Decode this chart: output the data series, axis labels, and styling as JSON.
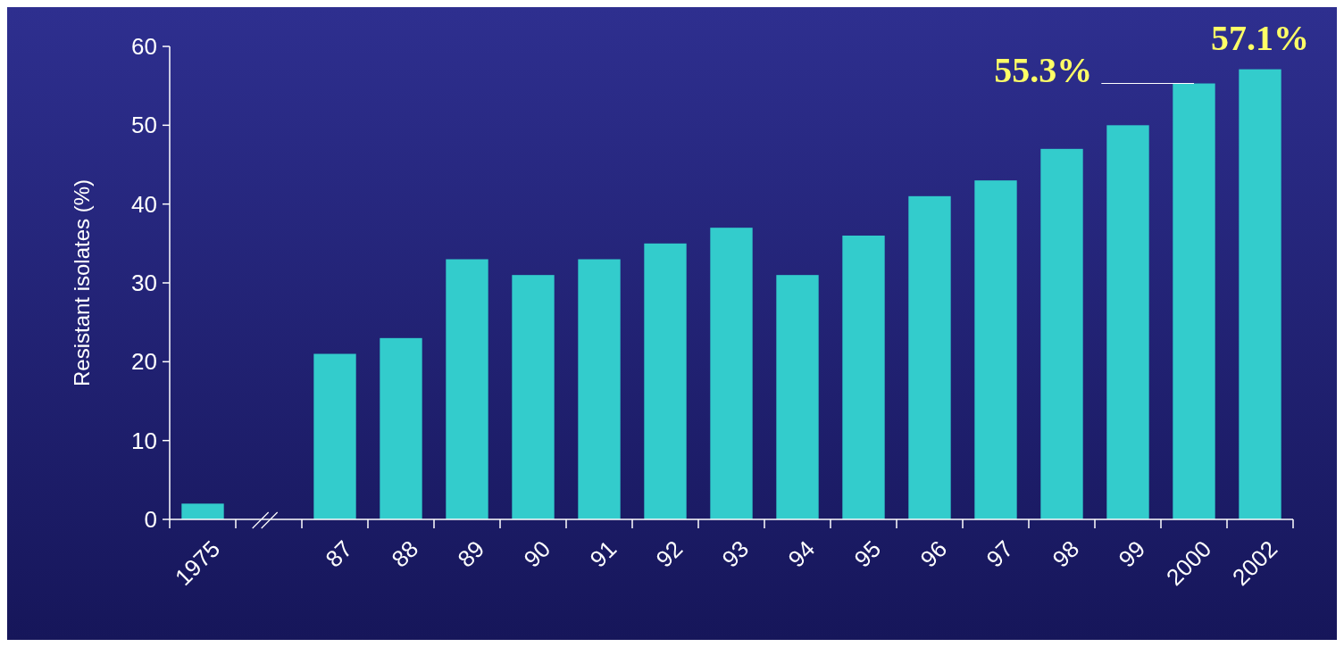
{
  "chart_data": {
    "type": "bar",
    "ylabel": "Resistant isolates (%)",
    "categories": [
      "1975",
      null,
      "87",
      "88",
      "89",
      "90",
      "91",
      "92",
      "93",
      "94",
      "95",
      "96",
      "97",
      "98",
      "99",
      "2000",
      "2002"
    ],
    "values": [
      2,
      null,
      21,
      23,
      33,
      31,
      33,
      35,
      37,
      31,
      36,
      41,
      43,
      47,
      50,
      55.3,
      57.1
    ],
    "color": "#33cccc",
    "ylim": [
      0,
      60
    ],
    "yticks": [
      0,
      10,
      20,
      30,
      40,
      50,
      60
    ],
    "grid": false,
    "annotations": [
      {
        "text": "55.3%",
        "x": "2000",
        "y": 55.3
      },
      {
        "text": "57.1%",
        "x": "2002",
        "y": 57.1
      }
    ]
  }
}
